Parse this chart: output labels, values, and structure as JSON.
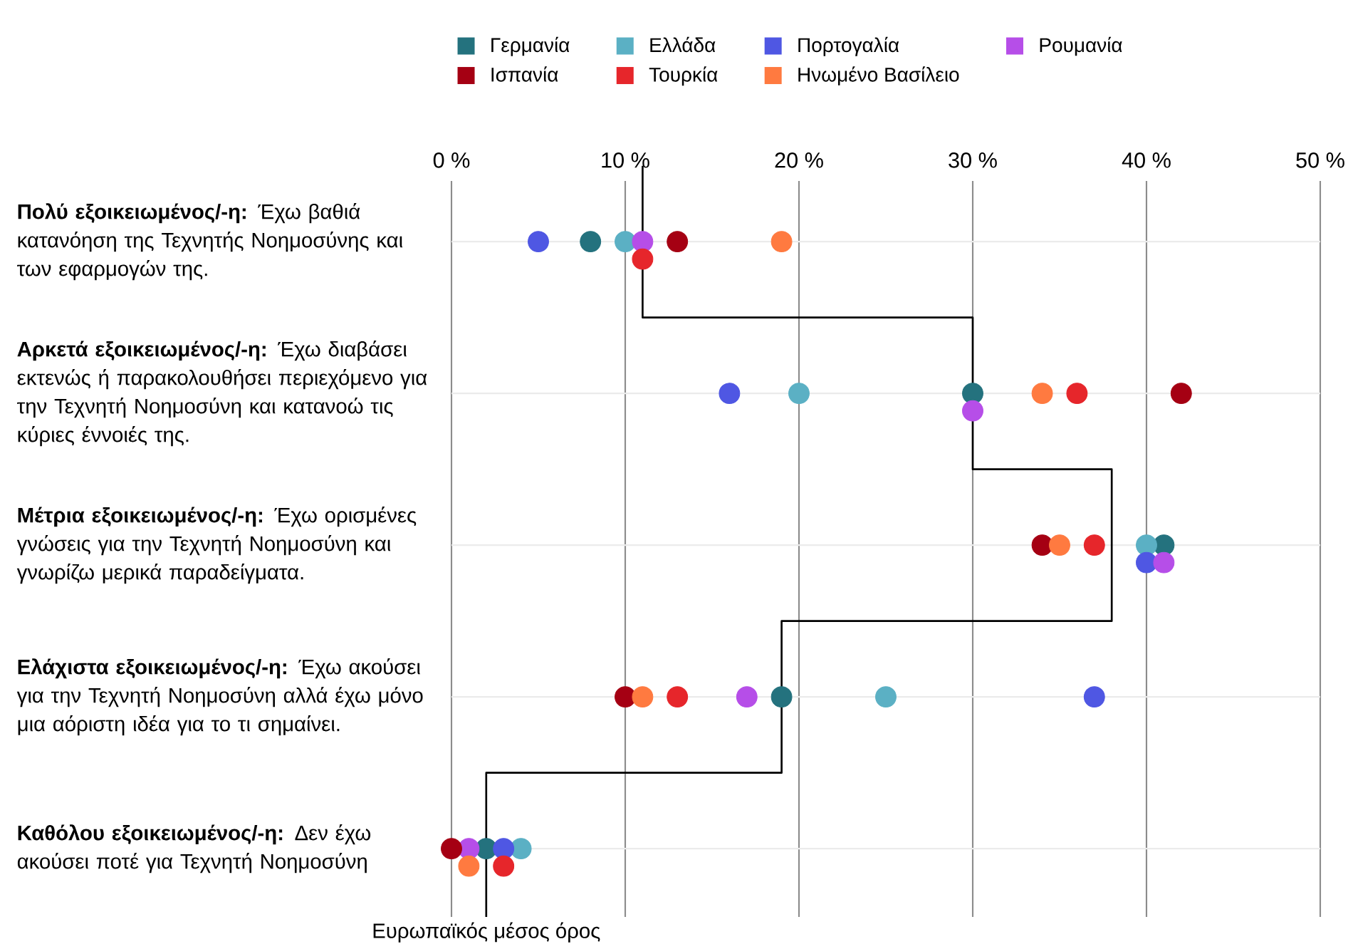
{
  "chart_data": {
    "type": "scatter",
    "orientation": "horizontal",
    "categories": [
      "**Πολύ εξοικειωμένος/-η:** Έχω βαθιά κατανόηση της Τεχνητής Νοημοσύνης και των εφαρμογών της.",
      "**Αρκετά εξοικειωμένος/-η:** Έχω διαβάσει εκτενώς ή παρακολουθήσει περιεχόμενο για την Τεχνητή Νοημοσύνη και κατανοώ τις κύριες έννοιές της.",
      "**Μέτρια εξοικειωμένος/-η:** Έχω ορισμένες γνώσεις για την Τεχνητή Νοημοσύνη και γνωρίζω μερικά παραδείγματα.",
      "**Ελάχιστα εξοικειωμένος/-η:** Έχω ακούσει για την Τεχνητή Νοημοσύνη αλλά έχω μόνο μια αόριστη ιδέα για το τι σημαίνει.",
      "**Καθόλου εξοικειωμένος/-η:** Δεν έχω ακούσει ποτέ για Τεχνητή Νοημοσύνη"
    ],
    "xlim": [
      0,
      50
    ],
    "xticks": [
      {
        "value": 0,
        "label": "0 %"
      },
      {
        "value": 10,
        "label": "10 %"
      },
      {
        "value": 20,
        "label": "20 %"
      },
      {
        "value": 30,
        "label": "30 %"
      },
      {
        "value": 40,
        "label": "40 %"
      },
      {
        "value": 50,
        "label": "50 %"
      }
    ],
    "grid": true,
    "legend": "top",
    "series": [
      {
        "name": "Γερμανία",
        "marker": "circle",
        "color": "#24727e",
        "values": [
          8,
          30,
          41,
          19,
          2
        ]
      },
      {
        "name": "Ελλάδα",
        "marker": "circle",
        "color": "#5bb0c4",
        "values": [
          10,
          20,
          40,
          25,
          4
        ]
      },
      {
        "name": "Πορτογαλία",
        "marker": "circle",
        "color": "#4f57e3",
        "values": [
          5,
          16,
          40,
          37,
          3
        ]
      },
      {
        "name": "Ρουμανία",
        "marker": "circle",
        "color": "#b64ee8",
        "values": [
          11,
          30,
          41,
          17,
          1
        ]
      },
      {
        "name": "Ισπανία",
        "marker": "circle",
        "color": "#a50013",
        "values": [
          13,
          42,
          34,
          10,
          0
        ]
      },
      {
        "name": "Τουρκία",
        "marker": "circle",
        "color": "#e6262b",
        "values": [
          11,
          36,
          37,
          13,
          3
        ]
      },
      {
        "name": "Ηνωμένο Βασίλειο",
        "marker": "circle",
        "color": "#ff7a40",
        "values": [
          19,
          34,
          35,
          11,
          1
        ]
      },
      {
        "type": "step",
        "marker": "none",
        "name": "Ευρωπαϊκός μέσος όρος",
        "color": "#000000",
        "values": [
          11,
          30,
          38,
          19,
          2
        ]
      }
    ]
  }
}
